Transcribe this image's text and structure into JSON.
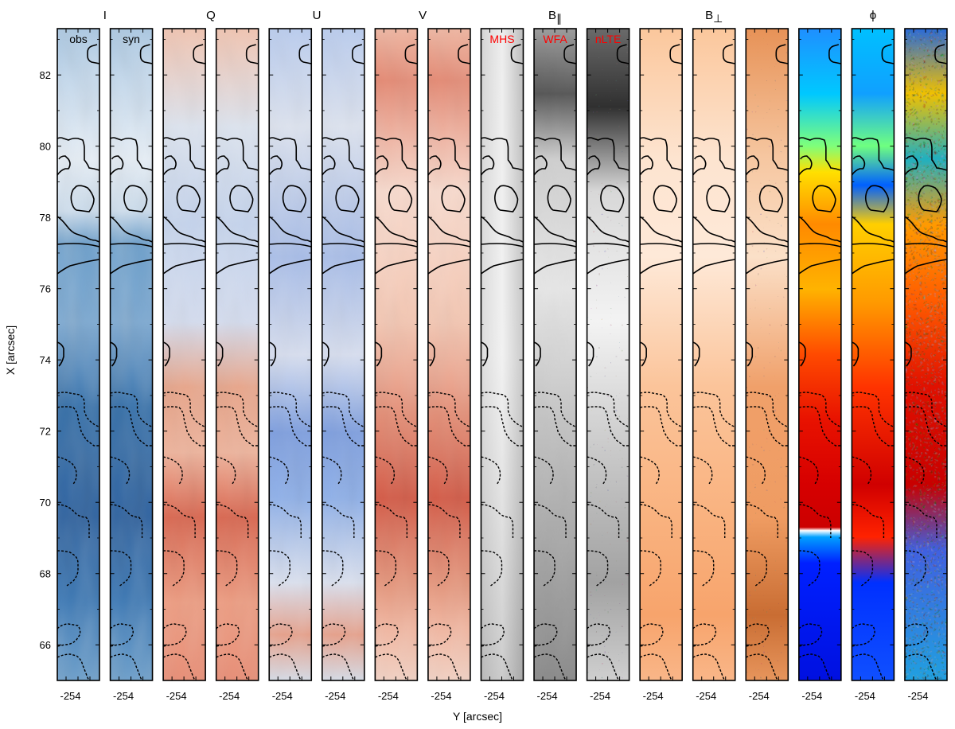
{
  "figure": {
    "xlabel": "Y [arcsec]",
    "ylabel": "X [arcsec]",
    "y_ticks": [
      "66",
      "68",
      "70",
      "72",
      "74",
      "76",
      "78",
      "80",
      "82"
    ],
    "x_tick_label": "-254"
  },
  "chart_data": {
    "type": "heatmap",
    "ylim": [
      65,
      83.3
    ],
    "y_tick_values": [
      66,
      68,
      70,
      72,
      74,
      76,
      78,
      80,
      82
    ],
    "x_tick_value": -254
  },
  "groups": [
    {
      "title": "I",
      "title_sub": "",
      "panels": [
        0,
        1
      ]
    },
    {
      "title": "Q",
      "title_sub": "",
      "panels": [
        2,
        3
      ]
    },
    {
      "title": "U",
      "title_sub": "",
      "panels": [
        4,
        5
      ]
    },
    {
      "title": "V",
      "title_sub": "",
      "panels": [
        6,
        7
      ]
    },
    {
      "title": "B",
      "title_sub": "∥",
      "panels": [
        8,
        9,
        10
      ]
    },
    {
      "title": "B",
      "title_sub": "⊥",
      "panels": [
        11,
        12,
        13
      ]
    },
    {
      "title": "ϕ",
      "title_sub": "",
      "panels": [
        14,
        15,
        16
      ]
    }
  ],
  "panels": [
    {
      "label": "obs",
      "label_color": "#000000",
      "map": "blues"
    },
    {
      "label": "syn",
      "label_color": "#000000",
      "map": "blues"
    },
    {
      "label": "",
      "label_color": "",
      "map": "rdbu"
    },
    {
      "label": "",
      "label_color": "",
      "map": "rdbu"
    },
    {
      "label": "",
      "label_color": "",
      "map": "rdbu_u"
    },
    {
      "label": "",
      "label_color": "",
      "map": "rdbu_u"
    },
    {
      "label": "",
      "label_color": "",
      "map": "rdbu_v"
    },
    {
      "label": "",
      "label_color": "",
      "map": "rdbu_v"
    },
    {
      "label": "MHS",
      "label_color": "#ff0000",
      "map": "gray_smooth"
    },
    {
      "label": "WFA",
      "label_color": "#ff0000",
      "map": "gray_dark"
    },
    {
      "label": "nLTE",
      "label_color": "#ff0000",
      "map": "gray_noisy"
    },
    {
      "label": "",
      "label_color": "",
      "map": "oranges"
    },
    {
      "label": "",
      "label_color": "",
      "map": "oranges"
    },
    {
      "label": "",
      "label_color": "",
      "map": "oranges_noisy"
    },
    {
      "label": "",
      "label_color": "",
      "map": "jet_smooth"
    },
    {
      "label": "",
      "label_color": "",
      "map": "jet_mid"
    },
    {
      "label": "",
      "label_color": "",
      "map": "jet_noisy"
    }
  ],
  "colors": {
    "label_red": "#ff0000",
    "frame": "#000000"
  }
}
